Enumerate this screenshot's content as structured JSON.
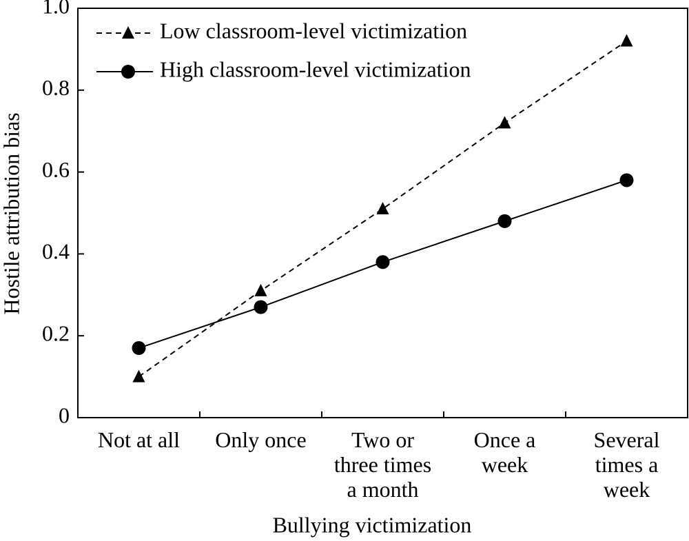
{
  "chart_data": {
    "type": "line",
    "xlabel": "Bullying victimization",
    "ylabel": "Hostile attribution bias",
    "categories": [
      "Not at all",
      "Only once",
      "Two or\nthree times\na month",
      "Once a\nweek",
      "Several\ntimes a\nweek"
    ],
    "series": [
      {
        "name": "Low classroom-level victimization",
        "color": "#000000",
        "linestyle": "dashed",
        "marker": "triangle",
        "values": [
          0.1,
          0.31,
          0.51,
          0.72,
          0.92
        ]
      },
      {
        "name": "High classroom-level victimization",
        "color": "#000000",
        "linestyle": "solid",
        "marker": "circle",
        "values": [
          0.17,
          0.27,
          0.38,
          0.48,
          0.58
        ]
      }
    ],
    "ylim": [
      0,
      1.0
    ],
    "yticks": [
      0,
      0.2,
      0.4,
      0.6,
      0.8,
      {
        "value": 1.0,
        "label": "1.0"
      }
    ],
    "legend": "upper left",
    "grid": false
  }
}
